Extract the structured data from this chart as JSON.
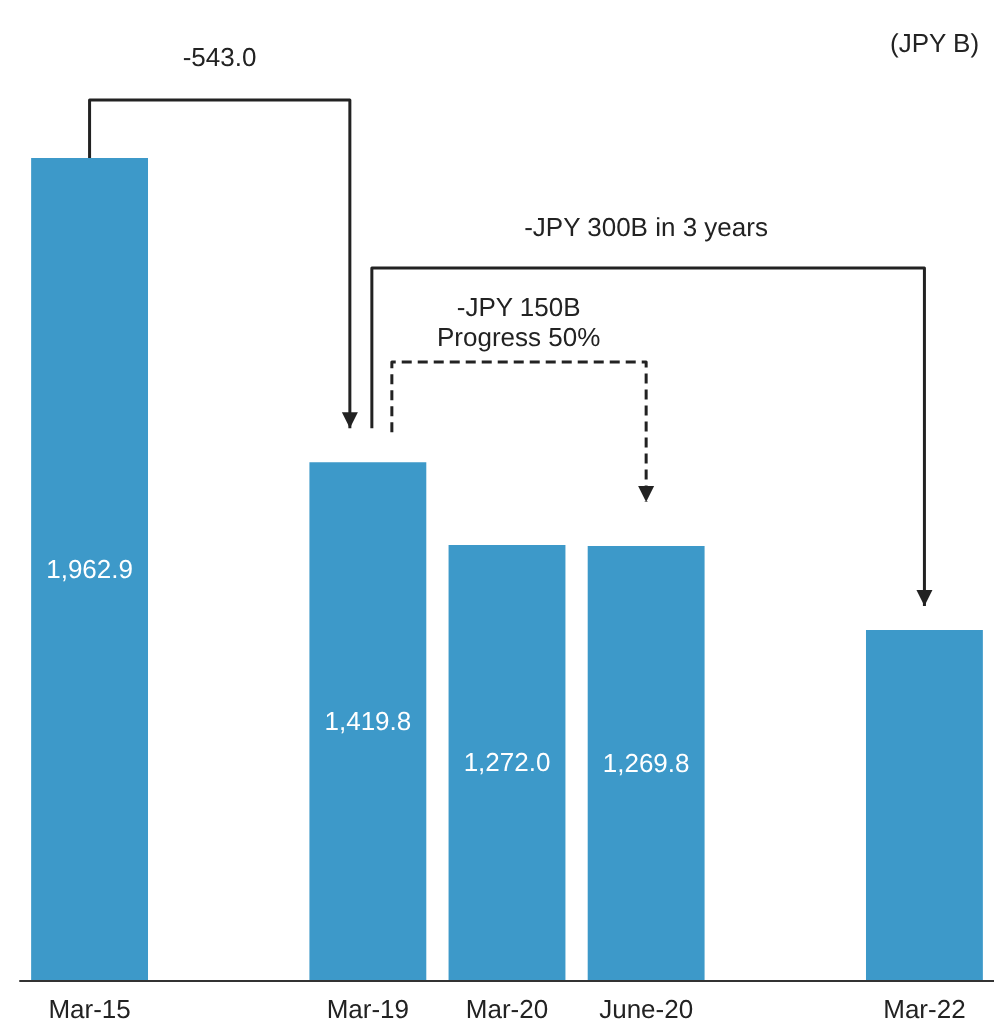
{
  "chart_data": {
    "type": "bar",
    "categories": [
      "Mar-15",
      null,
      "Mar-19",
      "Mar-20",
      "June-20",
      null,
      "Mar-22"
    ],
    "values": [
      1962.9,
      null,
      1419.8,
      1272.0,
      1269.8,
      null,
      1120
    ],
    "value_labels": [
      "1,962.9",
      null,
      "1,419.8",
      "1,272.0",
      "1,269.8",
      null,
      null
    ],
    "color": "#3d99c9",
    "ylim": [
      495,
      1962.9
    ],
    "tick_labels": "x",
    "annotations": [
      "(JPY B)",
      "-543.0",
      "-JPY 300B in 3 years",
      "-JPY 150B\nProgress 50%"
    ]
  }
}
